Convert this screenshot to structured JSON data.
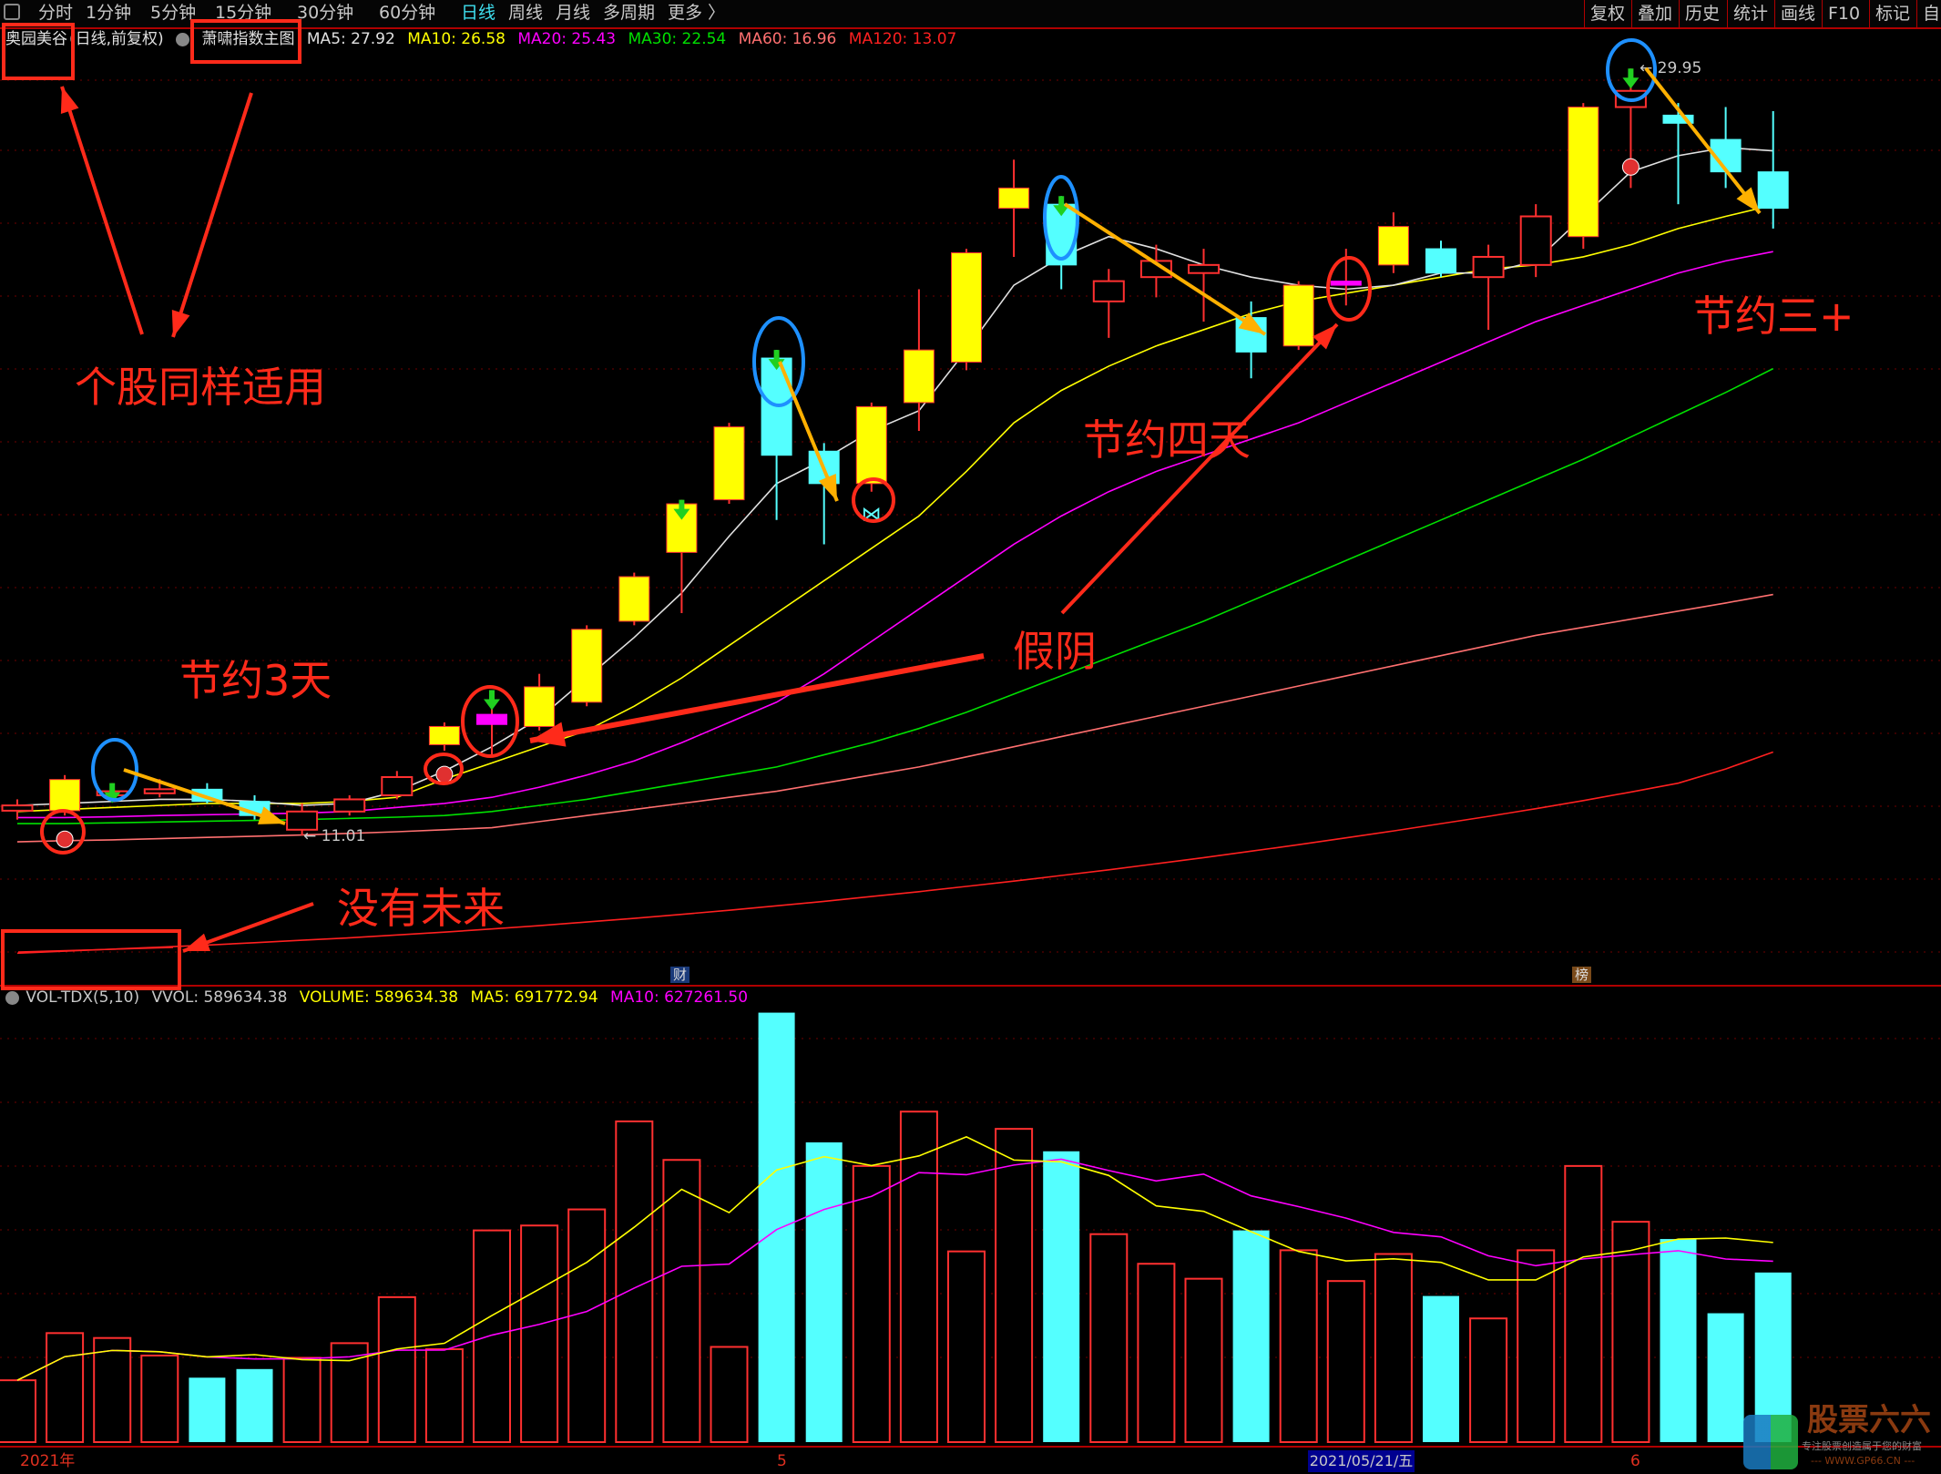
{
  "toolbar": {
    "left_tabs": [
      "分时",
      "1分钟",
      "5分钟",
      "15分钟",
      "30分钟",
      "60分钟",
      "日线",
      "周线",
      "月线",
      "多周期",
      "更多 〉"
    ],
    "active_tab": "日线",
    "right_tabs": [
      "复权",
      "叠加",
      "历史",
      "统计",
      "画线",
      "F10",
      "标记",
      "自"
    ]
  },
  "legend": {
    "stock_name": "奥园美谷",
    "period": "(日线,前复权)",
    "indicator": "萧啸指数主图",
    "ma5": "MA5: 27.92",
    "ma10": "MA10: 26.58",
    "ma20": "MA20: 25.43",
    "ma30": "MA30: 22.54",
    "ma60": "MA60: 16.96",
    "ma120": "MA120: 13.07"
  },
  "volume_legend": {
    "name": "VOL-TDX(5,10)",
    "vvol": "VVOL: 589634.38",
    "volume": "VOLUME: 589634.38",
    "ma5": "MA5: 691772.94",
    "ma10": "MA10: 627261.50"
  },
  "colors": {
    "up": "#ff3030",
    "down": "#54ffff",
    "yellow": "#ffff00",
    "magenta": "#ff00ff",
    "ma5": "#e0e0e0",
    "ma10": "#ffff00",
    "ma20": "#ff00ff",
    "ma30": "#00e000",
    "ma60": "#ff7070",
    "ma120": "#ff2020",
    "annotation": "#ff2a1a",
    "blue_circle": "#1e90ff",
    "orange_arrow": "#ffb000"
  },
  "chart_data": {
    "type": "candlestick",
    "candles": [
      {
        "o": 11.62,
        "c": 11.75,
        "h": 11.9,
        "l": 11.4,
        "style": "up"
      },
      {
        "o": 11.62,
        "c": 12.39,
        "h": 12.5,
        "l": 11.5,
        "style": "yellow"
      },
      {
        "o": 12.0,
        "c": 12.1,
        "h": 12.3,
        "l": 11.9,
        "style": "up"
      },
      {
        "o": 12.05,
        "c": 12.15,
        "h": 12.4,
        "l": 11.95,
        "style": "up"
      },
      {
        "o": 12.15,
        "c": 11.85,
        "h": 12.3,
        "l": 11.8,
        "style": "down"
      },
      {
        "o": 11.85,
        "c": 11.5,
        "h": 12.0,
        "l": 11.4,
        "style": "down"
      },
      {
        "o": 11.15,
        "c": 11.6,
        "h": 11.8,
        "l": 11.01,
        "style": "up"
      },
      {
        "o": 11.6,
        "c": 11.9,
        "h": 12.0,
        "l": 11.5,
        "style": "up"
      },
      {
        "o": 12.0,
        "c": 12.45,
        "h": 12.6,
        "l": 11.9,
        "style": "up"
      },
      {
        "o": 13.25,
        "c": 13.7,
        "h": 13.8,
        "l": 13.1,
        "style": "yellow"
      },
      {
        "o": 13.75,
        "c": 14.0,
        "h": 14.6,
        "l": 13.0,
        "style": "magenta"
      },
      {
        "o": 13.7,
        "c": 14.68,
        "h": 15.0,
        "l": 13.6,
        "style": "yellow"
      },
      {
        "o": 14.3,
        "c": 16.1,
        "h": 16.2,
        "l": 14.2,
        "style": "yellow"
      },
      {
        "o": 16.3,
        "c": 17.4,
        "h": 17.5,
        "l": 16.2,
        "style": "yellow"
      },
      {
        "o": 18.0,
        "c": 19.2,
        "h": 19.3,
        "l": 16.5,
        "style": "yellow"
      },
      {
        "o": 19.3,
        "c": 21.1,
        "h": 21.2,
        "l": 19.2,
        "style": "yellow"
      },
      {
        "o": 22.8,
        "c": 20.4,
        "h": 23.0,
        "l": 18.8,
        "style": "down"
      },
      {
        "o": 20.5,
        "c": 19.7,
        "h": 20.7,
        "l": 18.2,
        "style": "down"
      },
      {
        "o": 19.7,
        "c": 21.6,
        "h": 21.7,
        "l": 19.5,
        "style": "yellow"
      },
      {
        "o": 21.7,
        "c": 23.0,
        "h": 24.5,
        "l": 21.0,
        "style": "yellow"
      },
      {
        "o": 22.7,
        "c": 25.4,
        "h": 25.5,
        "l": 22.5,
        "style": "yellow"
      },
      {
        "o": 26.5,
        "c": 27.0,
        "h": 27.7,
        "l": 25.3,
        "style": "yellow"
      },
      {
        "o": 26.6,
        "c": 25.1,
        "h": 26.8,
        "l": 24.5,
        "style": "down"
      },
      {
        "o": 24.2,
        "c": 24.7,
        "h": 25.0,
        "l": 23.3,
        "style": "up"
      },
      {
        "o": 24.8,
        "c": 25.2,
        "h": 25.6,
        "l": 24.3,
        "style": "up"
      },
      {
        "o": 24.9,
        "c": 25.1,
        "h": 25.5,
        "l": 23.7,
        "style": "up"
      },
      {
        "o": 23.8,
        "c": 22.95,
        "h": 24.2,
        "l": 22.3,
        "style": "down"
      },
      {
        "o": 23.1,
        "c": 24.6,
        "h": 24.7,
        "l": 23.0,
        "style": "yellow"
      },
      {
        "o": 24.6,
        "c": 24.7,
        "h": 25.5,
        "l": 24.1,
        "style": "magenta"
      },
      {
        "o": 25.1,
        "c": 26.05,
        "h": 26.4,
        "l": 24.9,
        "style": "yellow"
      },
      {
        "o": 25.5,
        "c": 24.9,
        "h": 25.7,
        "l": 24.8,
        "style": "down"
      },
      {
        "o": 24.8,
        "c": 25.3,
        "h": 25.6,
        "l": 23.5,
        "style": "up"
      },
      {
        "o": 25.1,
        "c": 26.3,
        "h": 26.6,
        "l": 24.8,
        "style": "up"
      },
      {
        "o": 25.8,
        "c": 29.0,
        "h": 29.1,
        "l": 25.5,
        "style": "yellow"
      },
      {
        "o": 29.0,
        "c": 29.4,
        "h": 29.95,
        "l": 27.0,
        "style": "up"
      },
      {
        "o": 28.8,
        "c": 28.6,
        "h": 29.1,
        "l": 26.6,
        "style": "down"
      },
      {
        "o": 28.2,
        "c": 27.4,
        "h": 29.0,
        "l": 27.0,
        "style": "down"
      },
      {
        "o": 27.4,
        "c": 26.5,
        "h": 28.9,
        "l": 26.0,
        "style": "down"
      }
    ],
    "ma": {
      "ma5": [
        11.75,
        11.8,
        11.85,
        11.9,
        11.9,
        11.85,
        11.75,
        11.8,
        12.1,
        12.6,
        13.2,
        13.9,
        14.9,
        15.9,
        17.0,
        18.4,
        19.7,
        20.3,
        21.0,
        21.5,
        23.0,
        24.6,
        25.3,
        25.8,
        25.5,
        25.1,
        24.8,
        24.6,
        24.5,
        24.6,
        24.9,
        24.9,
        25.2,
        26.3,
        27.4,
        27.8,
        28.0,
        27.92
      ],
      "ma10": [
        11.6,
        11.65,
        11.7,
        11.75,
        11.8,
        11.8,
        11.8,
        11.85,
        11.95,
        12.4,
        12.8,
        13.2,
        13.6,
        14.2,
        14.9,
        15.7,
        16.5,
        17.3,
        18.1,
        18.9,
        20.0,
        21.2,
        22.0,
        22.6,
        23.1,
        23.5,
        23.9,
        24.2,
        24.4,
        24.6,
        24.8,
        25.0,
        25.1,
        25.3,
        25.6,
        26.0,
        26.3,
        26.58
      ],
      "ma20": [
        11.45,
        11.45,
        11.47,
        11.5,
        11.52,
        11.54,
        11.56,
        11.6,
        11.7,
        11.8,
        11.95,
        12.2,
        12.5,
        12.85,
        13.3,
        13.8,
        14.3,
        15.0,
        15.8,
        16.6,
        17.4,
        18.2,
        18.9,
        19.5,
        20.0,
        20.4,
        20.8,
        21.2,
        21.7,
        22.2,
        22.7,
        23.2,
        23.7,
        24.1,
        24.5,
        24.9,
        25.2,
        25.43
      ],
      "ma30": [
        11.3,
        11.3,
        11.32,
        11.34,
        11.36,
        11.38,
        11.4,
        11.43,
        11.46,
        11.5,
        11.6,
        11.75,
        11.9,
        12.1,
        12.3,
        12.5,
        12.7,
        13.0,
        13.3,
        13.65,
        14.05,
        14.5,
        14.95,
        15.4,
        15.85,
        16.3,
        16.8,
        17.3,
        17.8,
        18.3,
        18.8,
        19.3,
        19.8,
        20.3,
        20.85,
        21.4,
        21.95,
        22.54
      ],
      "ma60": [
        10.85,
        10.88,
        10.9,
        10.93,
        10.96,
        10.99,
        11.02,
        11.06,
        11.1,
        11.15,
        11.2,
        11.35,
        11.5,
        11.65,
        11.8,
        11.95,
        12.1,
        12.3,
        12.5,
        12.7,
        12.95,
        13.2,
        13.45,
        13.7,
        13.95,
        14.2,
        14.45,
        14.7,
        14.95,
        15.2,
        15.45,
        15.7,
        15.95,
        16.15,
        16.35,
        16.55,
        16.75,
        16.96
      ],
      "ma120": [
        8.1,
        8.15,
        8.2,
        8.25,
        8.3,
        8.36,
        8.42,
        8.48,
        8.55,
        8.62,
        8.7,
        8.78,
        8.87,
        8.96,
        9.06,
        9.16,
        9.27,
        9.38,
        9.5,
        9.62,
        9.75,
        9.88,
        10.02,
        10.16,
        10.31,
        10.46,
        10.62,
        10.78,
        10.95,
        11.12,
        11.3,
        11.48,
        11.67,
        11.87,
        12.08,
        12.3,
        12.65,
        13.07
      ]
    },
    "volume": [
      215000,
      379000,
      362000,
      301000,
      224000,
      254000,
      293000,
      344000,
      504000,
      323000,
      736000,
      753000,
      809000,
      1115000,
      981000,
      331000,
      1493000,
      1042000,
      960000,
      1149000,
      663000,
      1089000,
      1011000,
      723000,
      620000,
      568000,
      736000,
      667000,
      560000,
      654000,
      508000,
      430000,
      667000,
      960000,
      766000,
      706000,
      448000,
      589634.38
    ],
    "price_labels": {
      "high": "29.95",
      "low": "11.01"
    },
    "x_axis": {
      "year": "2021年",
      "may": "5",
      "cursor_date": "2021/05/21/五",
      "june": "6"
    },
    "signals": {
      "green_arrow": [
        2,
        10,
        14,
        16,
        22,
        34
      ],
      "red_ball": [
        1,
        9,
        33
      ],
      "butterfly": [
        18
      ]
    }
  },
  "markers": {
    "cai": "财",
    "bang": "榜"
  },
  "annotations": {
    "same_for_stocks": "个股同样适用",
    "save_3_days": "节约3天",
    "fake_bear": "假阴",
    "save_4_days": "节约四天",
    "save_3_plus": "节约三+",
    "no_future": "没有未来"
  },
  "watermark": {
    "brand": "股票六六",
    "slogan": "专注股票创造属于您的财富",
    "site": "--- WWW.GP66.CN ---"
  }
}
